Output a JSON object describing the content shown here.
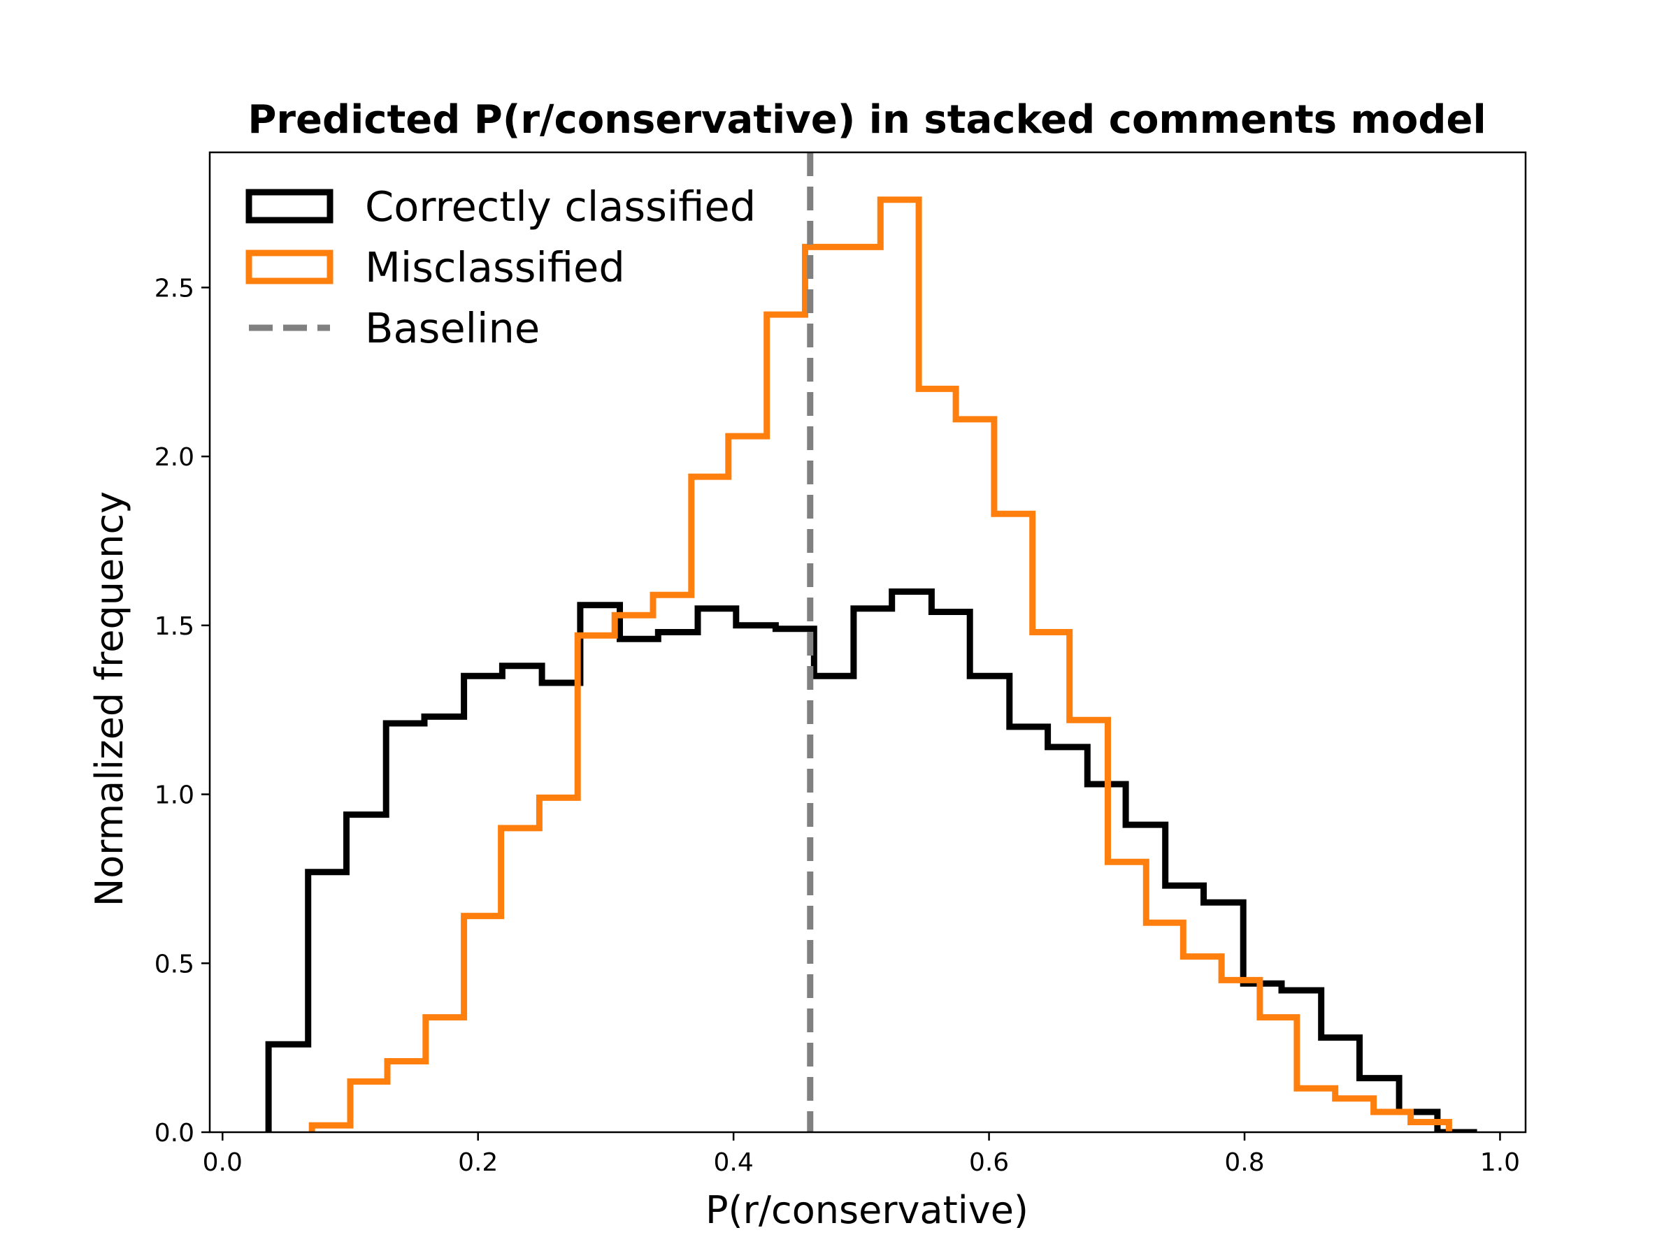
{
  "chart_data": {
    "type": "histogram",
    "title": "Predicted P(r/conservative) in stacked comments model",
    "xlabel": "P(r/conservative)",
    "ylabel": "Normalized frequency",
    "xlim": [
      -0.01,
      1.02
    ],
    "ylim": [
      0,
      2.9
    ],
    "xticks": [
      0.0,
      0.2,
      0.4,
      0.6,
      0.8,
      1.0
    ],
    "xtick_labels": [
      "0.0",
      "0.2",
      "0.4",
      "0.6",
      "0.8",
      "1.0"
    ],
    "yticks": [
      0.0,
      0.5,
      1.0,
      1.5,
      2.0,
      2.5
    ],
    "ytick_labels": [
      "0.0",
      "0.5",
      "1.0",
      "1.5",
      "2.0",
      "2.5"
    ],
    "grid": false,
    "legend_position": "top-left",
    "baseline": {
      "name": "Baseline",
      "x": 0.46,
      "color": "#808080",
      "style": "dashed"
    },
    "series": [
      {
        "name": "Correctly classified",
        "color": "#000000",
        "bin_edges": [
          0.036,
          0.067,
          0.097,
          0.128,
          0.158,
          0.189,
          0.219,
          0.25,
          0.28,
          0.311,
          0.341,
          0.372,
          0.402,
          0.433,
          0.463,
          0.494,
          0.524,
          0.555,
          0.585,
          0.616,
          0.646,
          0.677,
          0.707,
          0.738,
          0.768,
          0.799,
          0.829,
          0.86,
          0.89,
          0.921,
          0.951,
          0.982
        ],
        "values": [
          0.26,
          0.77,
          0.94,
          1.21,
          1.23,
          1.35,
          1.38,
          1.33,
          1.56,
          1.46,
          1.48,
          1.55,
          1.5,
          1.49,
          1.35,
          1.55,
          1.6,
          1.54,
          1.35,
          1.2,
          1.14,
          1.03,
          0.91,
          0.73,
          0.68,
          0.44,
          0.42,
          0.28,
          0.16,
          0.06,
          0.0
        ]
      },
      {
        "name": "Misclassified",
        "color": "#ff7f0e",
        "bin_edges": [
          0.07,
          0.1,
          0.129,
          0.159,
          0.189,
          0.218,
          0.248,
          0.278,
          0.307,
          0.337,
          0.367,
          0.396,
          0.426,
          0.456,
          0.485,
          0.515,
          0.545,
          0.574,
          0.604,
          0.634,
          0.663,
          0.693,
          0.723,
          0.752,
          0.782,
          0.812,
          0.841,
          0.871,
          0.901,
          0.93,
          0.96
        ],
        "values": [
          0.02,
          0.15,
          0.21,
          0.34,
          0.64,
          0.9,
          0.99,
          1.47,
          1.53,
          1.59,
          1.94,
          2.06,
          2.42,
          2.62,
          2.62,
          2.76,
          2.2,
          2.11,
          1.83,
          1.48,
          1.22,
          0.8,
          0.62,
          0.52,
          0.45,
          0.34,
          0.13,
          0.1,
          0.06,
          0.03,
          0.0
        ]
      }
    ]
  }
}
